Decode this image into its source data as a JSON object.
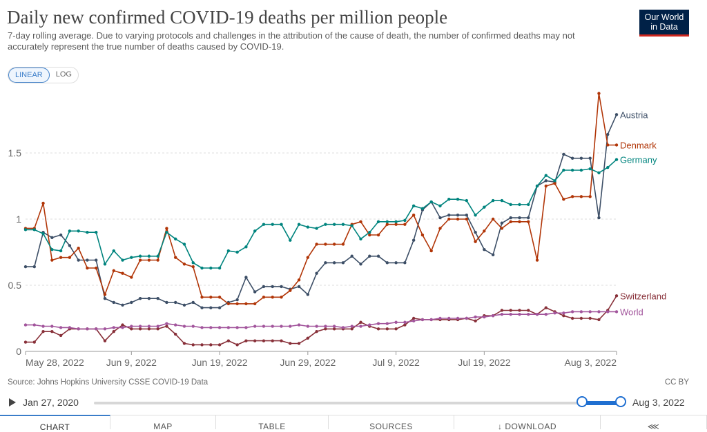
{
  "header": {
    "title": "Daily new confirmed COVID-19 deaths per million people",
    "subtitle": "7-day rolling average. Due to varying protocols and challenges in the attribution of the cause of death, the number of confirmed deaths may not accurately represent the true number of deaths caused by COVID-19.",
    "logo_line1": "Our World",
    "logo_line2": "in Data"
  },
  "scale_toggle": {
    "linear_label": "LINEAR",
    "log_label": "LOG",
    "selected": "LINEAR"
  },
  "footer": {
    "source": "Source: Johns Hopkins University CSSE COVID-19 Data",
    "license": "CC BY"
  },
  "timeline": {
    "start_label": "Jan 27, 2020",
    "end_label": "Aug 3, 2022"
  },
  "tabs": [
    "CHART",
    "MAP",
    "TABLE",
    "SOURCES",
    "↓ DOWNLOAD",
    "⋘"
  ],
  "chart_data": {
    "type": "line",
    "ylim": [
      0,
      2
    ],
    "yticks": [
      0,
      0.5,
      1,
      1.5
    ],
    "ytick_labels": [
      "0",
      "0.5",
      "1",
      "1.5"
    ],
    "xticks": [
      {
        "i": 0,
        "label": "May 28, 2022"
      },
      {
        "i": 12,
        "label": "Jun 9, 2022"
      },
      {
        "i": 22,
        "label": "Jun 19, 2022"
      },
      {
        "i": 32,
        "label": "Jun 29, 2022"
      },
      {
        "i": 42,
        "label": "Jul 9, 2022"
      },
      {
        "i": 52,
        "label": "Jul 19, 2022"
      },
      {
        "i": 67,
        "label": "Aug 3, 2022"
      }
    ],
    "series": [
      {
        "name": "Austria",
        "color": "#3c4e66",
        "values": [
          0.64,
          0.64,
          0.9,
          0.86,
          0.88,
          0.8,
          0.69,
          0.69,
          0.69,
          0.4,
          0.37,
          0.35,
          0.37,
          0.4,
          0.4,
          0.4,
          0.37,
          0.37,
          0.35,
          0.37,
          0.33,
          0.33,
          0.33,
          0.37,
          0.39,
          0.56,
          0.45,
          0.49,
          0.49,
          0.49,
          0.47,
          0.49,
          0.43,
          0.59,
          0.67,
          0.67,
          0.67,
          0.72,
          0.66,
          0.72,
          0.72,
          0.67,
          0.67,
          0.67,
          0.84,
          1.07,
          1.13,
          1.01,
          1.03,
          1.03,
          1.03,
          0.9,
          0.77,
          0.73,
          0.97,
          1.01,
          1.01,
          1.01,
          1.25,
          1.29,
          1.28,
          1.49,
          1.46,
          1.46,
          1.46,
          1.01,
          1.64,
          1.79
        ]
      },
      {
        "name": "Denmark",
        "color": "#b13507",
        "values": [
          0.93,
          0.93,
          1.12,
          0.69,
          0.71,
          0.71,
          0.78,
          0.63,
          0.63,
          0.43,
          0.61,
          0.59,
          0.56,
          0.69,
          0.69,
          0.69,
          0.93,
          0.71,
          0.66,
          0.64,
          0.41,
          0.41,
          0.41,
          0.36,
          0.36,
          0.36,
          0.36,
          0.41,
          0.41,
          0.41,
          0.46,
          0.54,
          0.71,
          0.81,
          0.81,
          0.81,
          0.81,
          0.96,
          0.98,
          0.88,
          0.88,
          0.96,
          0.96,
          0.96,
          1.03,
          0.88,
          0.76,
          0.93,
          1.0,
          1.0,
          1.0,
          0.83,
          0.91,
          1.0,
          0.93,
          0.98,
          0.98,
          0.98,
          0.69,
          1.25,
          1.27,
          1.15,
          1.17,
          1.17,
          1.17,
          1.95,
          1.56,
          1.56
        ]
      },
      {
        "name": "Germany",
        "color": "#00847e",
        "values": [
          0.92,
          0.92,
          0.89,
          0.77,
          0.76,
          0.91,
          0.91,
          0.9,
          0.9,
          0.66,
          0.76,
          0.69,
          0.71,
          0.72,
          0.72,
          0.72,
          0.9,
          0.85,
          0.81,
          0.67,
          0.63,
          0.63,
          0.63,
          0.76,
          0.75,
          0.79,
          0.91,
          0.96,
          0.96,
          0.96,
          0.84,
          0.96,
          0.94,
          0.93,
          0.96,
          0.96,
          0.96,
          0.95,
          0.85,
          0.9,
          0.98,
          0.98,
          0.98,
          0.99,
          1.1,
          1.08,
          1.13,
          1.1,
          1.15,
          1.15,
          1.14,
          1.03,
          1.09,
          1.14,
          1.14,
          1.11,
          1.11,
          1.11,
          1.25,
          1.33,
          1.29,
          1.37,
          1.37,
          1.37,
          1.38,
          1.35,
          1.39,
          1.45
        ]
      },
      {
        "name": "Switzerland",
        "color": "#883039",
        "values": [
          0.07,
          0.07,
          0.15,
          0.15,
          0.12,
          0.17,
          0.17,
          0.17,
          0.17,
          0.08,
          0.15,
          0.2,
          0.17,
          0.17,
          0.17,
          0.17,
          0.19,
          0.13,
          0.06,
          0.05,
          0.05,
          0.05,
          0.05,
          0.08,
          0.05,
          0.08,
          0.08,
          0.08,
          0.08,
          0.08,
          0.06,
          0.06,
          0.1,
          0.15,
          0.17,
          0.17,
          0.17,
          0.17,
          0.22,
          0.19,
          0.17,
          0.17,
          0.17,
          0.2,
          0.25,
          0.24,
          0.24,
          0.24,
          0.24,
          0.24,
          0.25,
          0.23,
          0.27,
          0.27,
          0.31,
          0.31,
          0.31,
          0.31,
          0.28,
          0.33,
          0.3,
          0.27,
          0.25,
          0.25,
          0.25,
          0.24,
          0.31,
          0.42
        ]
      },
      {
        "name": "World",
        "color": "#a2559c",
        "values": [
          0.2,
          0.2,
          0.19,
          0.19,
          0.18,
          0.18,
          0.17,
          0.17,
          0.17,
          0.17,
          0.18,
          0.18,
          0.19,
          0.19,
          0.19,
          0.19,
          0.21,
          0.2,
          0.19,
          0.19,
          0.18,
          0.18,
          0.18,
          0.18,
          0.18,
          0.18,
          0.19,
          0.19,
          0.19,
          0.19,
          0.19,
          0.2,
          0.19,
          0.19,
          0.19,
          0.19,
          0.18,
          0.19,
          0.19,
          0.2,
          0.21,
          0.21,
          0.22,
          0.22,
          0.23,
          0.24,
          0.24,
          0.25,
          0.25,
          0.25,
          0.25,
          0.26,
          0.26,
          0.27,
          0.28,
          0.28,
          0.28,
          0.28,
          0.28,
          0.28,
          0.29,
          0.29,
          0.3,
          0.3,
          0.3,
          0.3,
          0.3,
          0.3
        ]
      }
    ]
  }
}
